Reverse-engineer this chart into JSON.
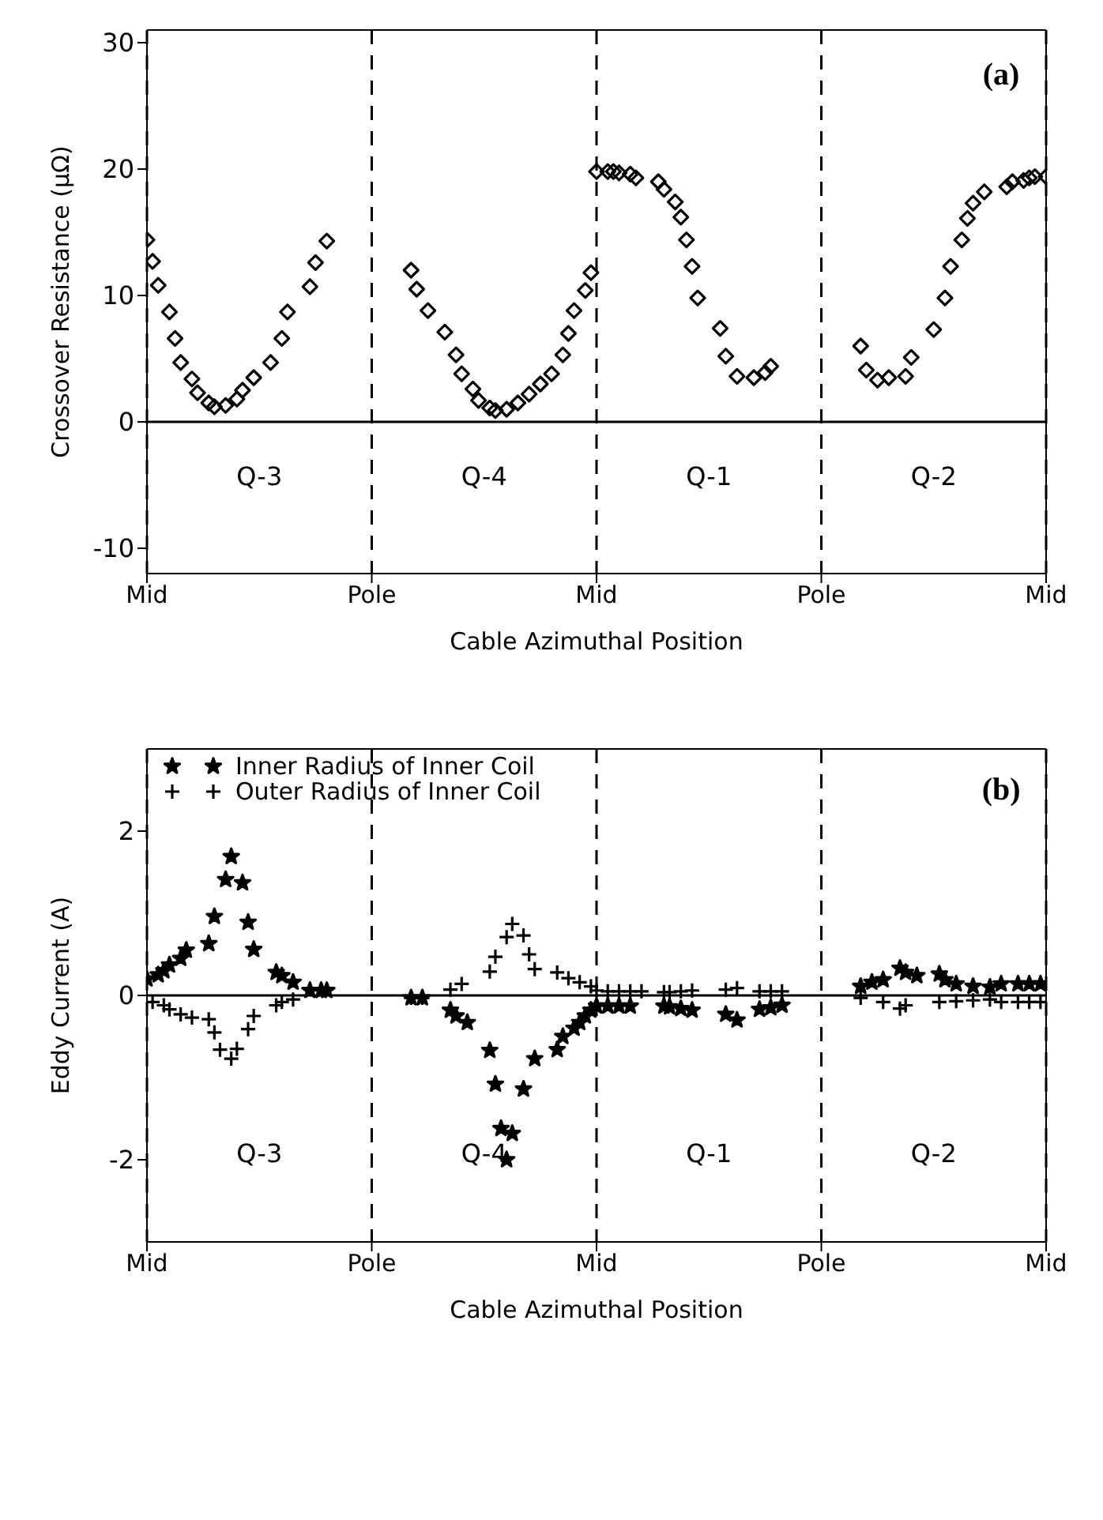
{
  "chart_data": [
    {
      "type": "scatter",
      "xlabel": "Cable Azimuthal Position",
      "ylabel": "Crossover Resistance (μΩ)",
      "ylim": [
        -12,
        31
      ],
      "yticks": [
        -10,
        0,
        10,
        20,
        30
      ],
      "grid": "x",
      "marker": "diamond",
      "color": "#000000",
      "categories": [
        "Mid",
        null,
        null,
        null,
        null,
        null,
        null,
        null,
        null,
        null,
        null,
        null,
        null,
        null,
        null,
        null,
        null,
        null,
        null,
        null,
        null,
        null,
        null,
        null,
        null,
        null,
        null,
        null,
        null,
        null,
        null,
        null,
        null,
        null,
        null,
        null,
        null,
        null,
        null,
        null,
        "Pole",
        null,
        null,
        null,
        null,
        null,
        null,
        null,
        null,
        null,
        null,
        null,
        null,
        null,
        null,
        null,
        null,
        null,
        null,
        null,
        null,
        null,
        null,
        null,
        null,
        null,
        null,
        null,
        null,
        null,
        null,
        null,
        null,
        null,
        null,
        null,
        null,
        null,
        null,
        null,
        "Mid",
        null,
        null,
        null,
        null,
        null,
        null,
        null,
        null,
        null,
        null,
        null,
        null,
        null,
        null,
        null,
        null,
        null,
        null,
        null,
        null,
        null,
        null,
        null,
        null,
        null,
        null,
        null,
        null,
        null,
        null,
        null,
        null,
        null,
        null,
        null,
        null,
        null,
        null,
        null,
        "Pole",
        null,
        null,
        null,
        null,
        null,
        null,
        null,
        null,
        null,
        null,
        null,
        null,
        null,
        null,
        null,
        null,
        null,
        null,
        null,
        null,
        null,
        null,
        null,
        null,
        null,
        null,
        null,
        null,
        null,
        null,
        null,
        null,
        null,
        null,
        null,
        null,
        null,
        null,
        null,
        "Mid"
      ],
      "values": [
        14.4,
        12.7,
        10.8,
        null,
        8.7,
        6.6,
        4.7,
        null,
        3.4,
        2.3,
        null,
        1.5,
        1.2,
        null,
        1.3,
        null,
        1.8,
        2.5,
        null,
        3.5,
        null,
        null,
        4.7,
        null,
        6.6,
        8.7,
        null,
        null,
        null,
        10.7,
        12.6,
        null,
        14.3,
        null,
        null,
        null,
        null,
        null,
        null,
        null,
        null,
        null,
        null,
        null,
        null,
        null,
        null,
        12.0,
        10.5,
        null,
        8.8,
        null,
        null,
        7.1,
        null,
        5.3,
        3.8,
        null,
        2.6,
        1.7,
        null,
        1.1,
        0.9,
        null,
        1.0,
        null,
        1.5,
        null,
        2.2,
        null,
        3.0,
        null,
        3.8,
        null,
        5.3,
        7.0,
        8.8,
        null,
        10.4,
        11.8,
        19.8,
        null,
        19.8,
        19.8,
        19.7,
        null,
        19.6,
        19.3,
        null,
        null,
        null,
        19.0,
        18.4,
        null,
        17.4,
        16.2,
        14.4,
        12.3,
        9.8,
        null,
        null,
        null,
        7.4,
        5.2,
        null,
        3.6,
        null,
        null,
        3.5,
        null,
        3.9,
        4.4,
        null,
        null,
        null,
        null,
        null,
        null,
        null,
        null,
        null,
        null,
        null,
        null,
        null,
        null,
        null,
        6.0,
        4.1,
        null,
        3.3,
        null,
        3.5,
        null,
        null,
        3.6,
        5.1,
        null,
        null,
        null,
        7.3,
        null,
        9.8,
        12.3,
        null,
        14.4,
        16.1,
        17.3,
        null,
        18.2,
        null,
        null,
        null,
        18.6,
        19.0,
        null,
        19.1,
        19.3,
        19.4,
        null,
        19.4
      ],
      "ref_lines": [
        {
          "axis": "y",
          "value": 0,
          "line_style": "solid",
          "color": "#000000"
        }
      ],
      "annotations": [
        "(a)",
        "Q-3",
        "Q-4",
        "Q-1",
        "Q-2"
      ]
    },
    {
      "type": "scatter",
      "xlabel": "Cable Azimuthal Position",
      "ylabel": "Eddy Current (A)",
      "ylim": [
        -3,
        3
      ],
      "yticks": [
        -2,
        0,
        2
      ],
      "grid": "x",
      "legend": "top left",
      "categories": [
        "Mid",
        null,
        null,
        null,
        null,
        null,
        null,
        null,
        null,
        null,
        null,
        null,
        null,
        null,
        null,
        null,
        null,
        null,
        null,
        null,
        null,
        null,
        null,
        null,
        null,
        null,
        null,
        null,
        null,
        null,
        null,
        null,
        null,
        null,
        null,
        null,
        null,
        null,
        null,
        null,
        "Pole",
        null,
        null,
        null,
        null,
        null,
        null,
        null,
        null,
        null,
        null,
        null,
        null,
        null,
        null,
        null,
        null,
        null,
        null,
        null,
        null,
        null,
        null,
        null,
        null,
        null,
        null,
        null,
        null,
        null,
        null,
        null,
        null,
        null,
        null,
        null,
        null,
        null,
        null,
        null,
        "Mid",
        null,
        null,
        null,
        null,
        null,
        null,
        null,
        null,
        null,
        null,
        null,
        null,
        null,
        null,
        null,
        null,
        null,
        null,
        null,
        null,
        null,
        null,
        null,
        null,
        null,
        null,
        null,
        null,
        null,
        null,
        null,
        null,
        null,
        null,
        null,
        null,
        null,
        null,
        null,
        "Pole",
        null,
        null,
        null,
        null,
        null,
        null,
        null,
        null,
        null,
        null,
        null,
        null,
        null,
        null,
        null,
        null,
        null,
        null,
        null,
        null,
        null,
        null,
        null,
        null,
        null,
        null,
        null,
        null,
        null,
        null,
        null,
        null,
        null,
        null,
        null,
        null,
        null,
        null,
        null,
        "Mid"
      ],
      "series": [
        {
          "name": "Inner Radius of Inner Coil",
          "color": "#000000",
          "marker": "star",
          "values": [
            0.2,
            null,
            0.25,
            0.3,
            0.37,
            null,
            0.45,
            0.55,
            null,
            null,
            null,
            0.63,
            0.96,
            null,
            1.41,
            1.69,
            null,
            1.37,
            0.89,
            0.56,
            null,
            null,
            null,
            0.28,
            0.24,
            null,
            0.16,
            null,
            null,
            0.06,
            null,
            0.06,
            0.06,
            null,
            null,
            null,
            null,
            null,
            null,
            null,
            null,
            null,
            null,
            null,
            null,
            null,
            null,
            -0.03,
            null,
            -0.03,
            null,
            null,
            null,
            null,
            -0.18,
            -0.25,
            null,
            -0.33,
            null,
            null,
            null,
            -0.67,
            -1.08,
            -1.62,
            -2.0,
            -1.68,
            null,
            -1.14,
            null,
            -0.77,
            null,
            null,
            null,
            -0.66,
            -0.5,
            null,
            -0.4,
            -0.33,
            -0.25,
            -0.18,
            -0.13,
            null,
            -0.13,
            null,
            -0.13,
            null,
            -0.13,
            null,
            null,
            null,
            null,
            null,
            -0.13,
            -0.14,
            null,
            -0.16,
            null,
            -0.18,
            null,
            null,
            null,
            null,
            null,
            -0.23,
            null,
            -0.3,
            null,
            null,
            null,
            -0.17,
            null,
            -0.15,
            null,
            -0.12,
            null,
            null,
            null,
            null,
            null,
            null,
            null,
            null,
            null,
            null,
            null,
            null,
            null,
            0.11,
            null,
            0.16,
            null,
            0.19,
            null,
            null,
            0.33,
            0.28,
            null,
            0.24,
            null,
            null,
            null,
            0.26,
            0.19,
            null,
            0.14,
            null,
            null,
            0.11,
            null,
            null,
            0.1,
            null,
            0.14,
            null,
            null,
            0.14,
            null,
            0.14,
            null,
            0.14,
            null
          ]
        },
        {
          "name": "Outer Radius of Inner Coil",
          "color": "#000000",
          "marker": "cross",
          "values": [
            null,
            -0.08,
            null,
            -0.12,
            -0.17,
            null,
            -0.23,
            null,
            -0.27,
            null,
            null,
            -0.29,
            -0.45,
            -0.66,
            null,
            -0.77,
            -0.65,
            null,
            -0.41,
            -0.25,
            null,
            null,
            null,
            -0.12,
            -0.08,
            null,
            -0.05,
            null,
            null,
            null,
            null,
            null,
            null,
            null,
            null,
            null,
            null,
            null,
            null,
            null,
            null,
            null,
            null,
            null,
            null,
            null,
            null,
            -0.03,
            null,
            -0.03,
            null,
            null,
            null,
            null,
            0.07,
            null,
            0.14,
            null,
            null,
            null,
            null,
            0.29,
            0.47,
            null,
            0.71,
            0.87,
            null,
            0.73,
            0.5,
            0.32,
            null,
            null,
            null,
            0.28,
            null,
            0.21,
            null,
            0.16,
            null,
            0.11,
            0.06,
            null,
            0.05,
            null,
            0.05,
            null,
            0.05,
            null,
            0.05,
            null,
            null,
            null,
            0.04,
            0.04,
            null,
            0.05,
            null,
            0.06,
            null,
            null,
            null,
            null,
            null,
            0.07,
            null,
            0.09,
            null,
            null,
            null,
            0.05,
            null,
            0.05,
            null,
            0.05,
            null,
            null,
            null,
            null,
            null,
            null,
            null,
            null,
            null,
            null,
            null,
            null,
            null,
            -0.03,
            null,
            null,
            null,
            -0.08,
            null,
            null,
            -0.16,
            -0.12,
            null,
            null,
            null,
            null,
            null,
            -0.08,
            null,
            null,
            -0.07,
            null,
            null,
            -0.06,
            null,
            null,
            -0.05,
            null,
            -0.08,
            null,
            null,
            -0.08,
            null,
            -0.08,
            null,
            -0.08,
            null
          ]
        }
      ],
      "ref_lines": [
        {
          "axis": "y",
          "value": 0,
          "line_style": "solid",
          "color": "#000000"
        }
      ],
      "annotations": [
        "(b)",
        "Q-3",
        "Q-4",
        "Q-1",
        "Q-2"
      ]
    }
  ]
}
